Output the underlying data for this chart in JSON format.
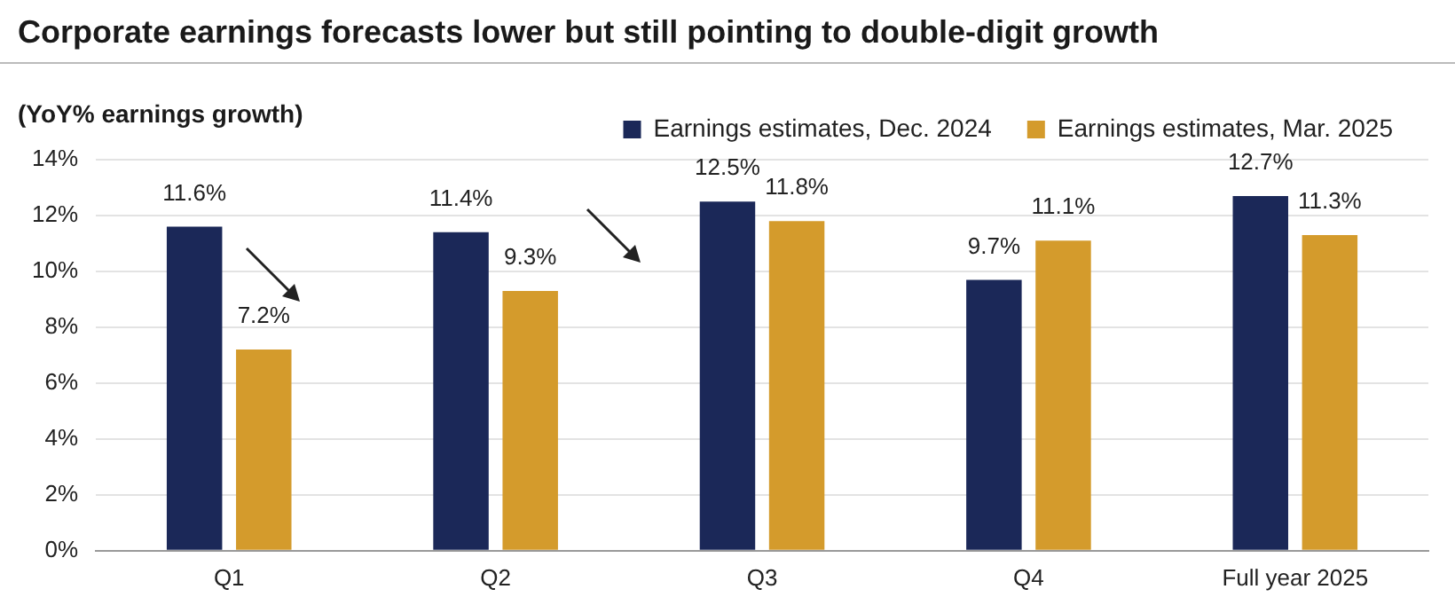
{
  "chart_data": {
    "type": "bar",
    "title": "Corporate earnings forecasts lower but still pointing to double-digit growth",
    "subtitle": "(YoY% earnings growth)",
    "categories": [
      "Q1",
      "Q2",
      "Q3",
      "Q4",
      "Full year 2025"
    ],
    "series": [
      {
        "name": "Earnings estimates, Dec. 2024",
        "color": "#1b2858",
        "values": [
          11.6,
          11.4,
          12.5,
          9.7,
          12.7
        ],
        "value_labels": [
          "11.6%",
          "11.4%",
          "12.5%",
          "9.7%",
          "12.7%"
        ]
      },
      {
        "name": "Earnings estimates, Mar. 2025",
        "color": "#d49b2c",
        "values": [
          7.2,
          9.3,
          11.8,
          11.1,
          11.3
        ],
        "value_labels": [
          "7.2%",
          "9.3%",
          "11.8%",
          "11.1%",
          "11.3%"
        ]
      }
    ],
    "ylim": [
      0,
      14
    ],
    "yticks": [
      {
        "value": 0,
        "label": "0%"
      },
      {
        "value": 2,
        "label": "2%"
      },
      {
        "value": 4,
        "label": "4%"
      },
      {
        "value": 6,
        "label": "6%"
      },
      {
        "value": 8,
        "label": "8%"
      },
      {
        "value": 10,
        "label": "10%"
      },
      {
        "value": 12,
        "label": "12%"
      },
      {
        "value": 14,
        "label": "14%"
      }
    ],
    "grid": "y",
    "legend": "top right"
  }
}
